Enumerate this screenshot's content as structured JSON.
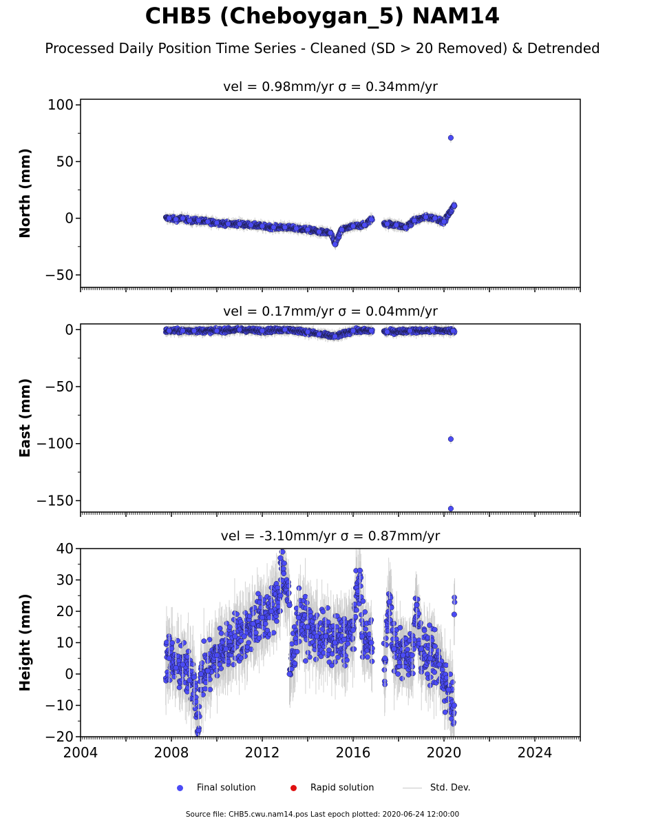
{
  "title": "CHB5 (Cheboygan_5) NAM14",
  "subtitle": "Processed Daily Position Time Series - Cleaned (SD > 20 Removed) & Detrended",
  "legend": {
    "final_label": "Final solution",
    "rapid_label": "Rapid solution",
    "std_label": "Std. Dev.",
    "final_color": "#4b4bf5",
    "rapid_color": "#e01010",
    "std_color": "#c8c8c8"
  },
  "footer": "Source file: CHB5.cwu.nam14.pos  Last epoch plotted: 2020-06-24 12:00:00",
  "chart_data": [
    {
      "type": "scatter",
      "name": "north",
      "title": "vel = 0.98mm/yr   σ = 0.34mm/yr",
      "ylabel": "North (mm)",
      "xlim": [
        2004,
        2026
      ],
      "ylim": [
        -61,
        105
      ],
      "yticks": [
        -50,
        0,
        50,
        100
      ],
      "yticklabels": [
        "−50",
        "0",
        "50",
        "100"
      ],
      "xticks": [
        2004,
        2008,
        2012,
        2016,
        2020,
        2024
      ],
      "xticklabels": [
        "",
        "",
        "",
        "",
        "",
        ""
      ],
      "grid": false,
      "points": [
        [
          2007.9,
          0
        ],
        [
          2008.2,
          -1
        ],
        [
          2008.5,
          0
        ],
        [
          2008.8,
          -2
        ],
        [
          2009.2,
          -2
        ],
        [
          2009.6,
          -3
        ],
        [
          2010.0,
          -4
        ],
        [
          2010.5,
          -5
        ],
        [
          2011.0,
          -5
        ],
        [
          2011.5,
          -6
        ],
        [
          2012.0,
          -7
        ],
        [
          2012.5,
          -8
        ],
        [
          2013.0,
          -8
        ],
        [
          2013.5,
          -9
        ],
        [
          2014.0,
          -10
        ],
        [
          2014.5,
          -12
        ],
        [
          2015.0,
          -13
        ],
        [
          2015.2,
          -23
        ],
        [
          2015.5,
          -10
        ],
        [
          2016.0,
          -7
        ],
        [
          2016.5,
          -6
        ],
        [
          2016.8,
          -1
        ],
        [
          2017.5,
          -5
        ],
        [
          2017.9,
          -6
        ],
        [
          2018.3,
          -8
        ],
        [
          2018.7,
          -2
        ],
        [
          2019.2,
          1
        ],
        [
          2019.6,
          0
        ],
        [
          2020.0,
          -3
        ],
        [
          2020.3,
          71
        ],
        [
          2020.45,
          11
        ]
      ]
    },
    {
      "type": "scatter",
      "name": "east",
      "title": "vel = 0.17mm/yr   σ = 0.04mm/yr",
      "ylabel": "East (mm)",
      "xlim": [
        2004,
        2026
      ],
      "ylim": [
        -160,
        5
      ],
      "yticks": [
        -150,
        -100,
        -50,
        0
      ],
      "yticklabels": [
        "−150",
        "−100",
        "−50",
        "0"
      ],
      "xticks": [
        2004,
        2008,
        2012,
        2016,
        2020,
        2024
      ],
      "xticklabels": [
        "",
        "",
        "",
        "",
        "",
        ""
      ],
      "grid": false,
      "points": [
        [
          2007.9,
          -1
        ],
        [
          2008.5,
          -1
        ],
        [
          2009.0,
          -1
        ],
        [
          2010.0,
          -1
        ],
        [
          2011.0,
          0
        ],
        [
          2012.0,
          -1
        ],
        [
          2013.0,
          0
        ],
        [
          2014.0,
          -2
        ],
        [
          2014.5,
          -4
        ],
        [
          2015.2,
          -6
        ],
        [
          2016.0,
          -1
        ],
        [
          2016.8,
          -1
        ],
        [
          2017.5,
          -2
        ],
        [
          2018.5,
          -1
        ],
        [
          2019.5,
          -1
        ],
        [
          2020.4,
          -1
        ],
        [
          2020.3,
          -96
        ],
        [
          2020.3,
          -157
        ]
      ]
    },
    {
      "type": "scatter",
      "name": "height",
      "title": "vel = -3.10mm/yr   σ = 0.87mm/yr",
      "ylabel": "Height (mm)",
      "xlim": [
        2004,
        2026
      ],
      "ylim": [
        -20,
        40
      ],
      "yticks": [
        -20,
        -10,
        0,
        10,
        20,
        30,
        40
      ],
      "yticklabels": [
        "−20",
        "−10",
        "0",
        "10",
        "20",
        "30",
        "40"
      ],
      "xticks": [
        2004,
        2008,
        2012,
        2016,
        2020,
        2024
      ],
      "xticklabels": [
        "2004",
        "2008",
        "2012",
        "2016",
        "2020",
        "2024"
      ],
      "grid": false,
      "points": [
        [
          2007.9,
          5
        ],
        [
          2008.2,
          2
        ],
        [
          2008.5,
          3
        ],
        [
          2008.8,
          -2
        ],
        [
          2009.0,
          -1
        ],
        [
          2009.3,
          0
        ],
        [
          2009.6,
          1
        ],
        [
          2010.0,
          6
        ],
        [
          2010.4,
          8
        ],
        [
          2010.8,
          12
        ],
        [
          2011.2,
          12
        ],
        [
          2011.6,
          16
        ],
        [
          2012.0,
          18
        ],
        [
          2012.4,
          20
        ],
        [
          2012.8,
          25
        ],
        [
          2013.2,
          22
        ],
        [
          2013.6,
          18
        ],
        [
          2014.0,
          15
        ],
        [
          2014.4,
          12
        ],
        [
          2014.8,
          12
        ],
        [
          2015.2,
          10
        ],
        [
          2015.6,
          11
        ],
        [
          2016.0,
          14
        ],
        [
          2016.4,
          12
        ],
        [
          2016.8,
          10
        ],
        [
          2017.4,
          5
        ],
        [
          2017.8,
          8
        ],
        [
          2018.2,
          6
        ],
        [
          2018.6,
          6
        ],
        [
          2019.0,
          8
        ],
        [
          2019.4,
          5
        ],
        [
          2019.8,
          3
        ],
        [
          2020.2,
          -5
        ],
        [
          2020.45,
          -10
        ],
        [
          2012.8,
          37
        ],
        [
          2016.3,
          33
        ],
        [
          2009.2,
          -18
        ],
        [
          2013.2,
          0
        ],
        [
          2017.6,
          23
        ],
        [
          2018.8,
          22
        ],
        [
          2020.45,
          19
        ]
      ]
    }
  ]
}
